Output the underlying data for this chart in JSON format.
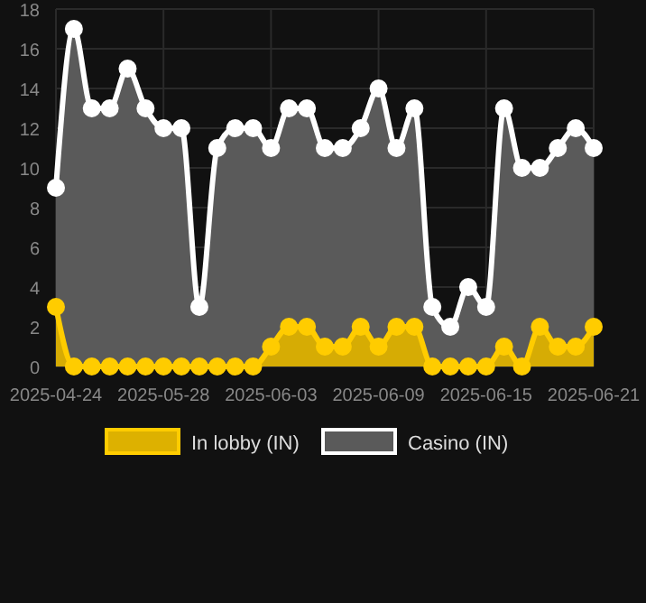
{
  "chart_data": {
    "type": "area",
    "categories": [
      "2025-04-24",
      null,
      null,
      null,
      null,
      null,
      "2025-05-28",
      null,
      null,
      null,
      null,
      null,
      "2025-06-03",
      null,
      null,
      null,
      null,
      null,
      "2025-06-09",
      null,
      null,
      null,
      null,
      null,
      "2025-06-15",
      null,
      null,
      null,
      null,
      null,
      "2025-06-21"
    ],
    "series": [
      {
        "name": "In lobby (IN)",
        "color": "#ffcc00",
        "values": [
          3,
          0,
          0,
          0,
          0,
          0,
          0,
          0,
          0,
          0,
          0,
          0,
          1,
          2,
          2,
          1,
          1,
          2,
          1,
          2,
          2,
          0,
          0,
          0,
          0,
          1,
          0,
          2,
          1,
          1,
          2
        ]
      },
      {
        "name": "Casino (IN)",
        "color": "#ffffff",
        "values": [
          9,
          17,
          13,
          13,
          15,
          13,
          12,
          12,
          3,
          11,
          12,
          12,
          11,
          13,
          13,
          11,
          11,
          12,
          14,
          11,
          13,
          3,
          2,
          4,
          3,
          13,
          10,
          10,
          11,
          12,
          11
        ]
      }
    ],
    "ylim": [
      0,
      18
    ],
    "yticks": [
      0,
      2,
      4,
      6,
      8,
      10,
      12,
      14,
      16,
      18
    ],
    "grid": true,
    "legend": "bottom",
    "marker": "circle"
  }
}
